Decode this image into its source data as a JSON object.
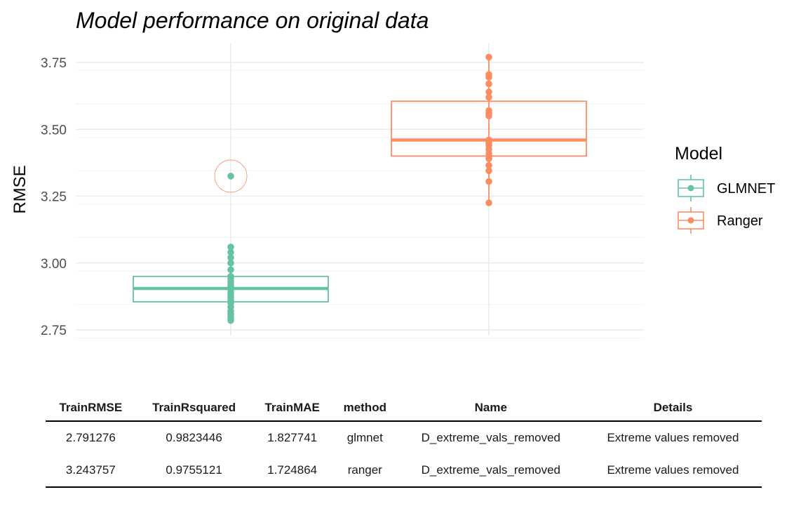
{
  "chart_data": {
    "type": "box",
    "title": "Model performance on original data",
    "xlabel": "",
    "ylabel": "RMSE",
    "ylim": [
      2.72,
      3.78
    ],
    "yticks": [
      "2.75",
      "3.00",
      "3.25",
      "3.50",
      "3.75"
    ],
    "grid": true,
    "legend": {
      "title": "Model",
      "placement": "right"
    },
    "series": [
      {
        "name": "GLMNET",
        "color": "#66c2a5",
        "box": {
          "q1": 2.855,
          "median": 2.905,
          "q3": 2.95
        },
        "points": [
          2.785,
          2.79,
          2.8,
          2.81,
          2.82,
          2.835,
          2.85,
          2.86,
          2.87,
          2.88,
          2.89,
          2.9,
          2.91,
          2.92,
          2.93,
          2.94,
          2.95,
          2.975,
          3.0,
          3.02,
          3.04,
          3.06
        ],
        "outlier": 3.325
      },
      {
        "name": "Ranger",
        "color": "#fc8d62",
        "box": {
          "q1": 3.4,
          "median": 3.46,
          "q3": 3.605
        },
        "points": [
          3.225,
          3.305,
          3.345,
          3.365,
          3.39,
          3.4,
          3.41,
          3.425,
          3.44,
          3.45,
          3.46,
          3.55,
          3.56,
          3.57,
          3.62,
          3.64,
          3.67,
          3.695,
          3.705,
          3.77
        ]
      }
    ]
  },
  "table": {
    "headers": [
      "TrainRMSE",
      "TrainRsquared",
      "TrainMAE",
      "method",
      "Name",
      "Details"
    ],
    "rows": [
      [
        "2.791276",
        "0.9823446",
        "1.827741",
        "glmnet",
        "D_extreme_vals_removed",
        "Extreme values removed"
      ],
      [
        "3.243757",
        "0.9755121",
        "1.724864",
        "ranger",
        "D_extreme_vals_removed",
        "Extreme values removed"
      ]
    ]
  }
}
